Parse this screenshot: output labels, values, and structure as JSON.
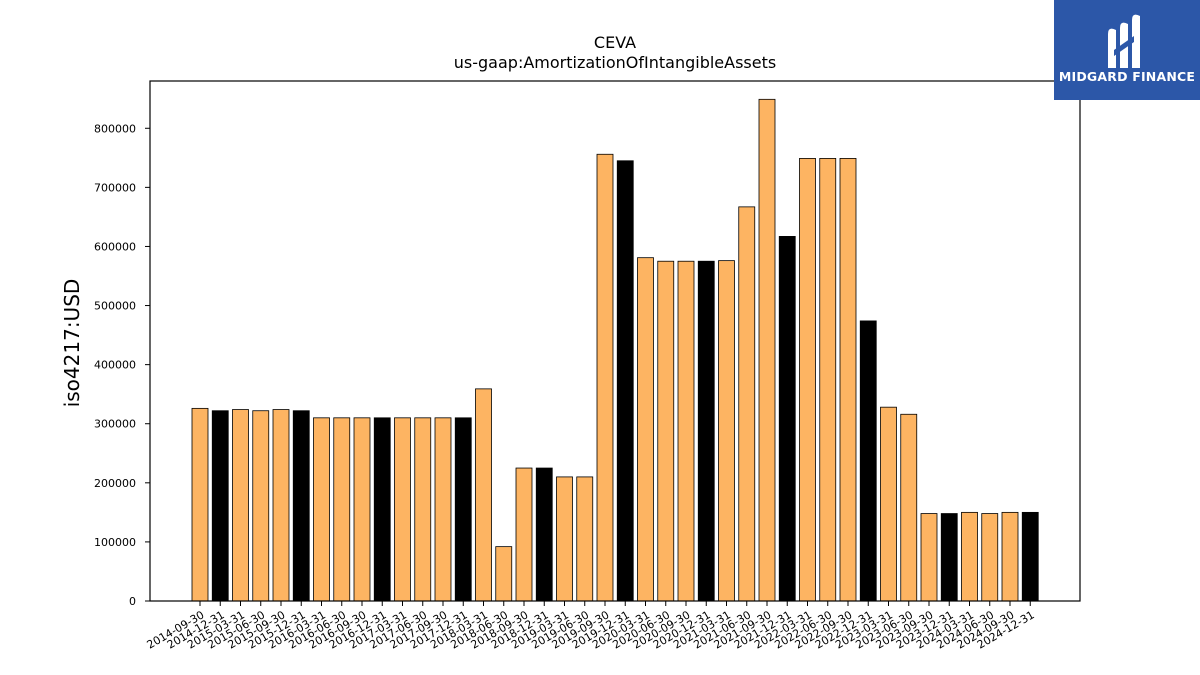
{
  "chart_data": {
    "type": "bar",
    "title": "CEVA",
    "subtitle": "us-gaap:AmortizationOfIntangibleAssets",
    "xlabel": "",
    "ylabel": "iso4217:USD",
    "ylim": [
      0,
      880000
    ],
    "yticks": [
      0,
      100000,
      200000,
      300000,
      400000,
      500000,
      600000,
      700000,
      800000
    ],
    "grid": false,
    "legend": "none",
    "colors": {
      "quarter": "#fdb462",
      "year_end": "#000000",
      "edge": "#000000"
    },
    "categories": [
      "2014-09-30",
      "2014-12-31",
      "2015-03-31",
      "2015-06-30",
      "2015-09-30",
      "2015-12-31",
      "2016-03-31",
      "2016-06-30",
      "2016-09-30",
      "2016-12-31",
      "2017-03-31",
      "2017-06-30",
      "2017-09-30",
      "2017-12-31",
      "2018-03-31",
      "2018-06-30",
      "2018-09-30",
      "2018-12-31",
      "2019-03-31",
      "2019-06-30",
      "2019-09-30",
      "2019-12-31",
      "2020-03-31",
      "2020-06-30",
      "2020-09-30",
      "2020-12-31",
      "2021-03-31",
      "2021-06-30",
      "2021-09-30",
      "2021-12-31",
      "2022-03-31",
      "2022-06-30",
      "2022-09-30",
      "2022-12-31",
      "2023-03-31",
      "2023-06-30",
      "2023-09-30",
      "2023-12-31",
      "2024-03-31",
      "2024-06-30",
      "2024-09-30",
      "2024-12-31"
    ],
    "values": [
      326000,
      322000,
      324000,
      322000,
      324000,
      322000,
      310000,
      310000,
      310000,
      310000,
      310000,
      310000,
      310000,
      310000,
      359000,
      92000,
      225000,
      225000,
      210000,
      210000,
      756000,
      745000,
      581000,
      575000,
      575000,
      575000,
      576000,
      667000,
      849000,
      617000,
      749000,
      749000,
      749000,
      474000,
      328000,
      316000,
      148000,
      148000,
      150000,
      148000,
      150000,
      150000
    ]
  },
  "logo": {
    "text": "MIDGARD FINANCE"
  }
}
